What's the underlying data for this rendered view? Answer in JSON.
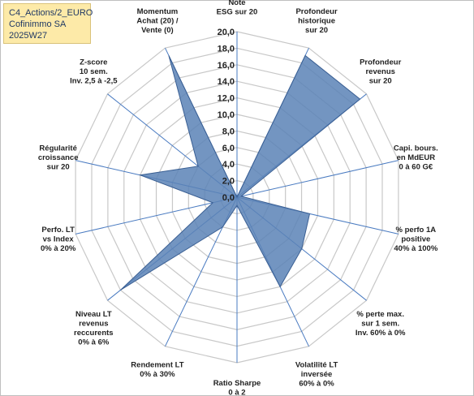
{
  "header": {
    "lines": [
      "C4_Actions/2_EURO",
      "Cofinimmo SA",
      "2025W27"
    ]
  },
  "colors": {
    "series_fill": "#5b82b6",
    "series_fill_opacity": 0.85,
    "series_stroke": "#3a5f93",
    "grid": "#c8c8c8",
    "spoke": "#4a7bc1",
    "title_box": "#fdeaa8"
  },
  "chart_data": {
    "type": "radar",
    "grid": true,
    "rlim": [
      0,
      20
    ],
    "tick_step": 2,
    "tick_labels": [
      "0,0",
      "2,0",
      "4,0",
      "6,0",
      "8,0",
      "10,0",
      "12,0",
      "14,0",
      "16,0",
      "18,0",
      "20,0"
    ],
    "categories": [
      [
        "Note",
        "ESG sur 20"
      ],
      [
        "Profondeur",
        "historique",
        "sur 20"
      ],
      [
        "Profondeur",
        "revenus",
        "sur 20"
      ],
      [
        "Capi. bours.",
        "en MdEUR",
        "0 à 60 G€"
      ],
      [
        "% perfo 1A",
        "positive",
        "40% à 100%"
      ],
      [
        "% perte max.",
        "sur 1 sem.",
        "Inv. 60% à 0%"
      ],
      [
        "Volatilité LT",
        "inversée",
        "60% à 0%"
      ],
      [
        "Ratio Sharpe",
        "0 à 2"
      ],
      [
        "Rendement LT",
        "0% à 30%"
      ],
      [
        "Niveau LT",
        "revenus",
        "reccurents",
        "0% à 6%"
      ],
      [
        "Perfo. LT",
        "vs Index",
        "0% à 20%"
      ],
      [
        "Régularité",
        "croissance",
        "sur 20"
      ],
      [
        "Z-score",
        "10 sem.",
        "Inv. 2,5 à -2,5"
      ],
      [
        "Momentum",
        "Achat (20) /",
        "Vente (0)"
      ]
    ],
    "series": [
      {
        "values": [
          0.0,
          19.0,
          19.0,
          0.5,
          9.0,
          10.0,
          12.0,
          1.0,
          4.0,
          18.0,
          3.0,
          12.0,
          6.0,
          19.0
        ]
      }
    ]
  }
}
